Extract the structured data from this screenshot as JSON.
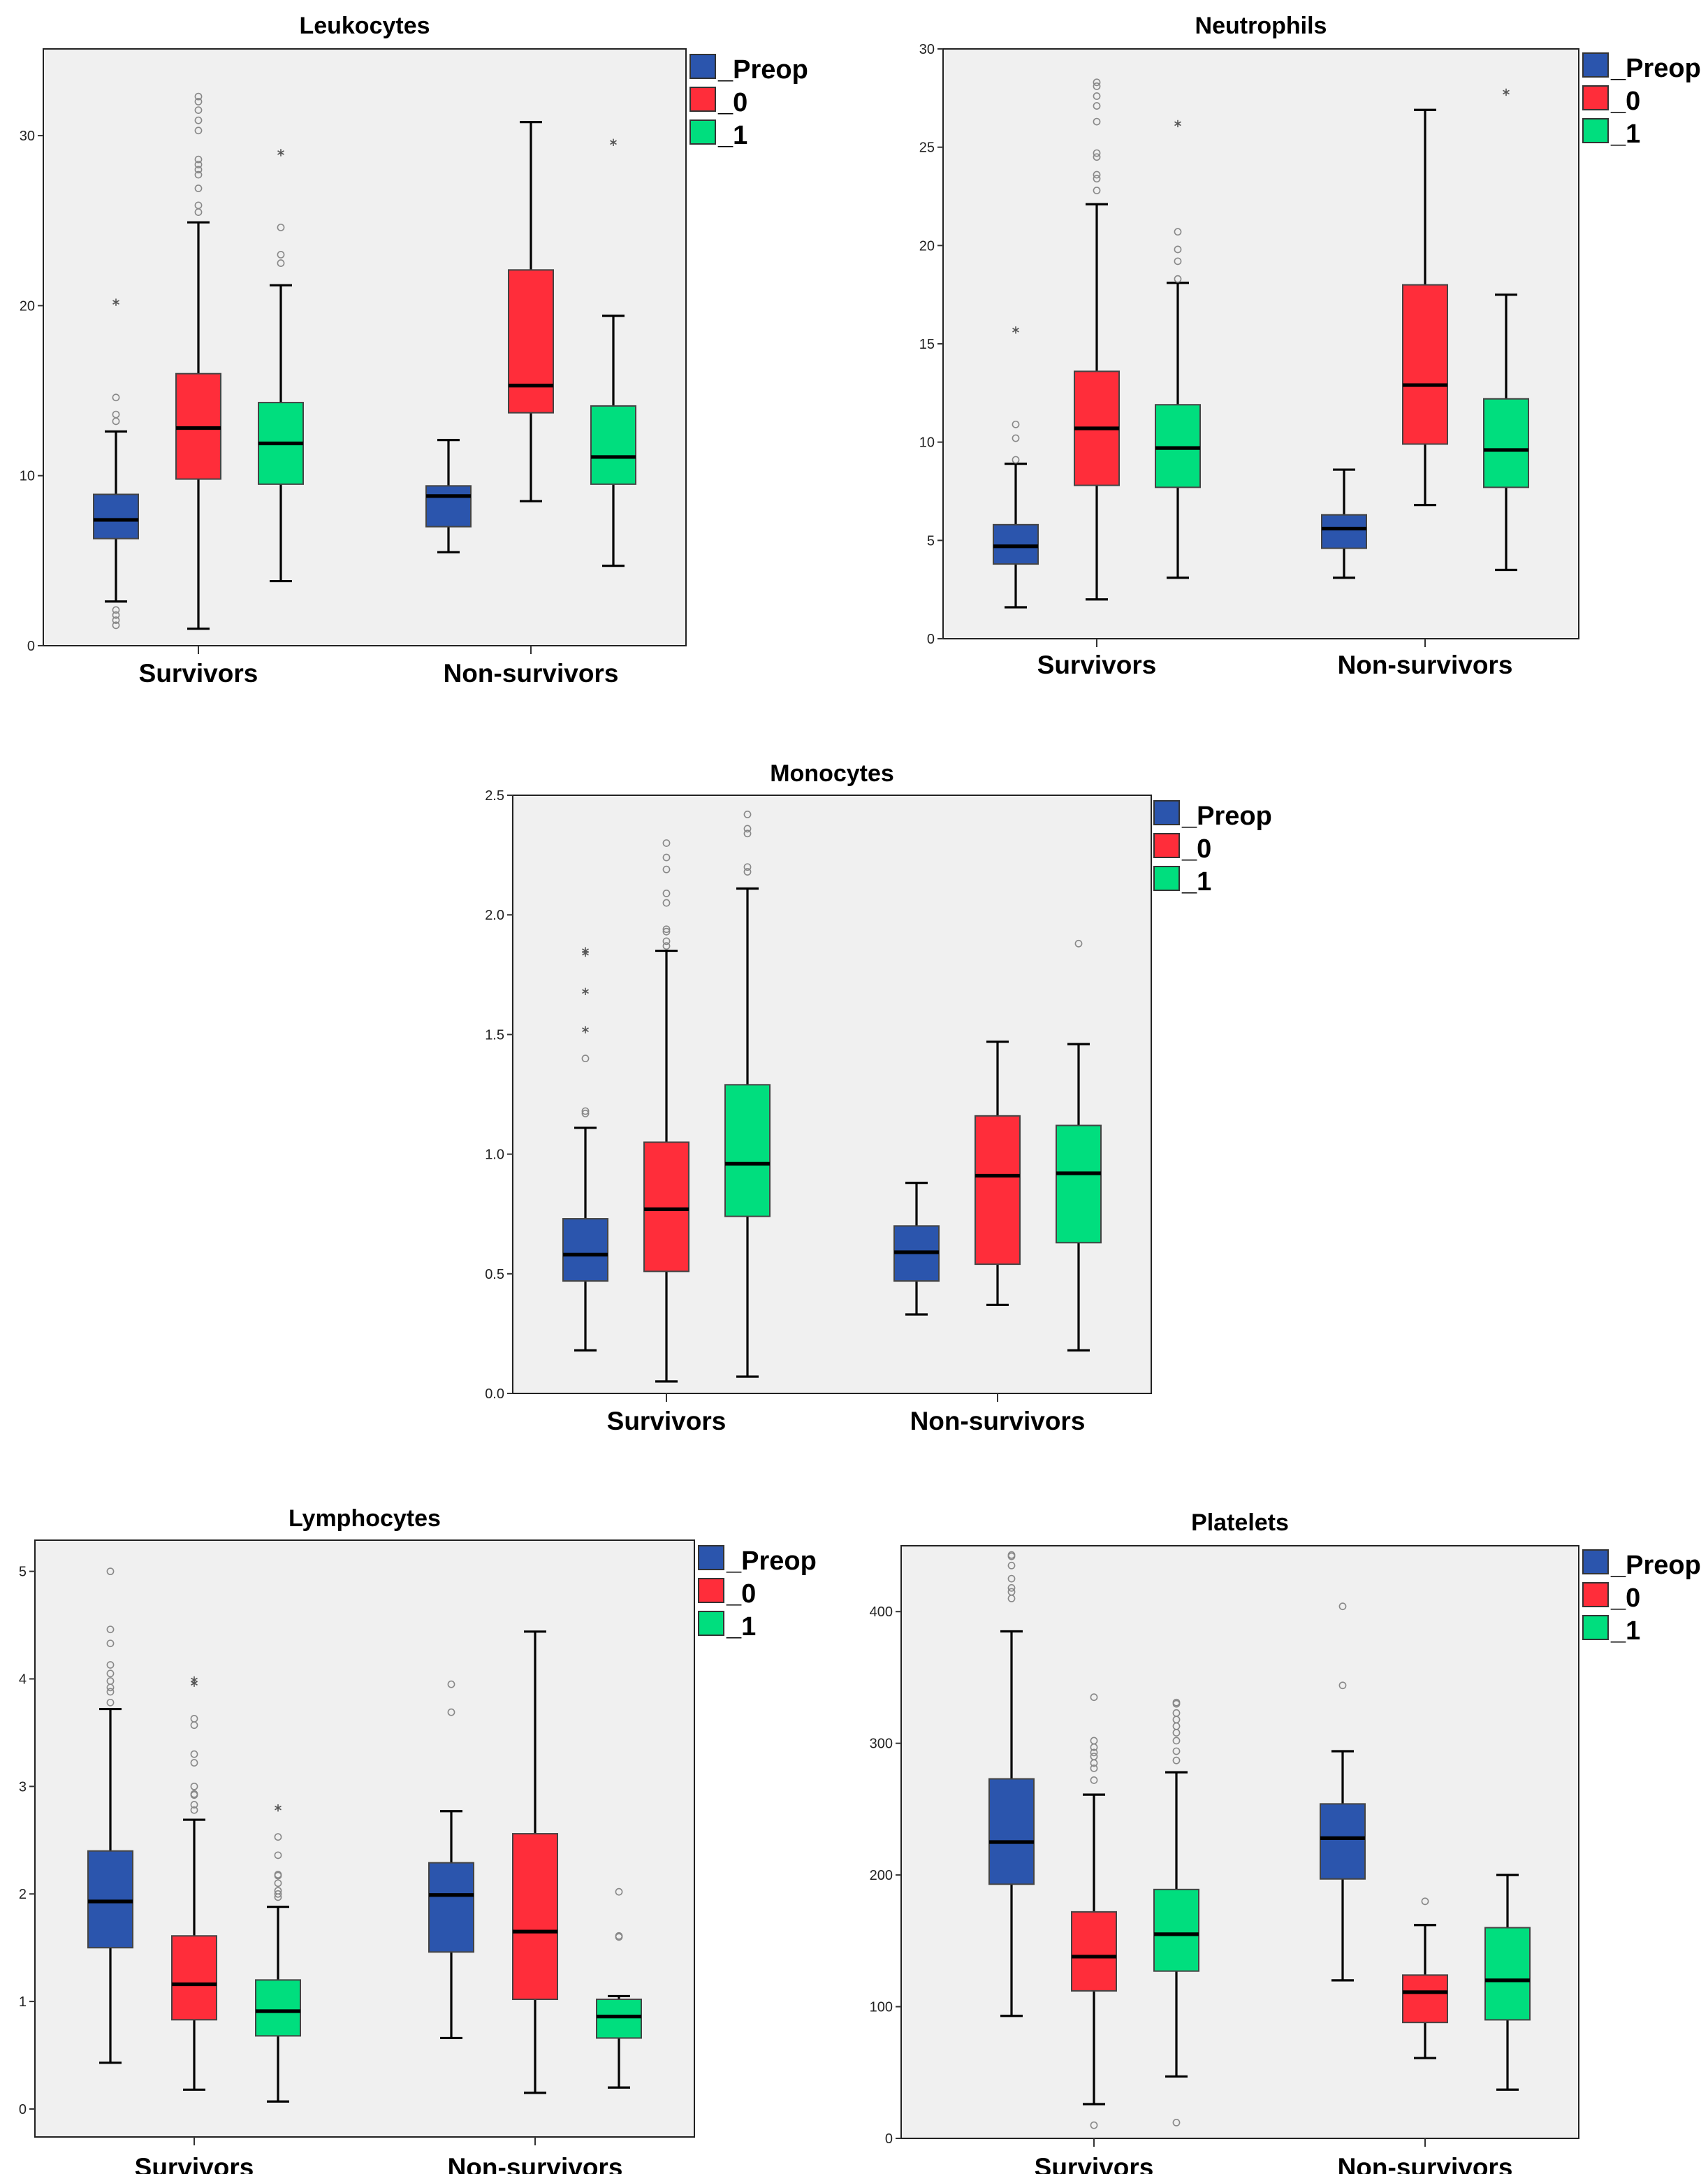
{
  "colors": {
    "_Preop": "#2b55ad",
    "_0": "#ff2d3a",
    "_1": "#00de7e",
    "plot_bg": "#f0f0f0"
  },
  "chart_data": [
    {
      "type": "box",
      "title": "Leukocytes",
      "categories": [
        "Survivors",
        "Non-survivors"
      ],
      "legend": [
        "_Preop",
        "_0",
        "_1"
      ],
      "legend_position": "top-right-outside",
      "yticks": [
        0,
        10,
        20,
        30
      ],
      "ylim": [
        0,
        35.1
      ],
      "series": [
        {
          "name": "_Preop",
          "boxes": [
            {
              "low": 2.6,
              "q1": 6.3,
              "median": 7.4,
              "q3": 8.9,
              "high": 12.6,
              "outliers": [
                1.2,
                1.5,
                1.8,
                2.1,
                13.2,
                13.6,
                14.6
              ],
              "extremes": [
                20.2
              ]
            },
            {
              "low": 5.5,
              "q1": 7.0,
              "median": 8.8,
              "q3": 9.4,
              "high": 12.1,
              "outliers": [],
              "extremes": []
            }
          ]
        },
        {
          "name": "_0",
          "boxes": [
            {
              "low": 1.0,
              "q1": 9.8,
              "median": 12.8,
              "q3": 16.0,
              "high": 24.9,
              "outliers": [
                25.5,
                25.9,
                26.9,
                27.7,
                28.0,
                28.3,
                28.6,
                30.3,
                30.9,
                31.5,
                32.0,
                32.3
              ],
              "extremes": []
            },
            {
              "low": 8.5,
              "q1": 13.7,
              "median": 15.3,
              "q3": 22.1,
              "high": 30.8,
              "outliers": [],
              "extremes": []
            }
          ]
        },
        {
          "name": "_1",
          "boxes": [
            {
              "low": 3.8,
              "q1": 9.5,
              "median": 11.9,
              "q3": 14.3,
              "high": 21.2,
              "outliers": [
                22.5,
                23.0,
                24.6
              ],
              "extremes": [
                29.0
              ]
            },
            {
              "low": 4.7,
              "q1": 9.5,
              "median": 11.1,
              "q3": 14.1,
              "high": 19.4,
              "outliers": [],
              "extremes": [
                29.6
              ]
            }
          ]
        }
      ]
    },
    {
      "type": "box",
      "title": "Neutrophils",
      "categories": [
        "Survivors",
        "Non-survivors"
      ],
      "legend": [
        "_Preop",
        "_0",
        "_1"
      ],
      "legend_position": "top-right-outside",
      "yticks": [
        0,
        5,
        10,
        15,
        20,
        25,
        30
      ],
      "ylim": [
        0,
        30
      ],
      "series": [
        {
          "name": "_Preop",
          "boxes": [
            {
              "low": 1.6,
              "q1": 3.8,
              "median": 4.7,
              "q3": 5.8,
              "high": 8.9,
              "outliers": [
                9.1,
                10.2,
                10.9
              ],
              "extremes": [
                15.7
              ]
            },
            {
              "low": 3.1,
              "q1": 4.6,
              "median": 5.6,
              "q3": 6.3,
              "high": 8.6,
              "outliers": [],
              "extremes": []
            }
          ]
        },
        {
          "name": "_0",
          "boxes": [
            {
              "low": 2.0,
              "q1": 7.8,
              "median": 10.7,
              "q3": 13.6,
              "high": 22.1,
              "outliers": [
                22.8,
                23.4,
                23.6,
                24.5,
                24.7,
                26.3,
                27.1,
                27.6,
                28.1,
                28.3
              ],
              "extremes": []
            },
            {
              "low": 6.8,
              "q1": 9.9,
              "median": 12.9,
              "q3": 18.0,
              "high": 26.9,
              "outliers": [],
              "extremes": []
            }
          ]
        },
        {
          "name": "_1",
          "boxes": [
            {
              "low": 3.1,
              "q1": 7.7,
              "median": 9.7,
              "q3": 11.9,
              "high": 18.1,
              "outliers": [
                18.3,
                19.2,
                19.8,
                20.7
              ],
              "extremes": [
                26.2
              ]
            },
            {
              "low": 3.5,
              "q1": 7.7,
              "median": 9.6,
              "q3": 12.2,
              "high": 17.5,
              "outliers": [],
              "extremes": [
                27.8
              ]
            }
          ]
        }
      ]
    },
    {
      "type": "box",
      "title": "Monocytes",
      "categories": [
        "Survivors",
        "Non-survivors"
      ],
      "legend": [
        "_Preop",
        "_0",
        "_1"
      ],
      "legend_position": "top-right-outside",
      "yticks": [
        "0.0",
        "0.5",
        "1.0",
        "1.5",
        "2.0",
        "2.5"
      ],
      "ylim": [
        0,
        2.5
      ],
      "series": [
        {
          "name": "_Preop",
          "boxes": [
            {
              "low": 0.18,
              "q1": 0.47,
              "median": 0.58,
              "q3": 0.73,
              "high": 1.11,
              "outliers": [
                1.17,
                1.18,
                1.4
              ],
              "extremes": [
                1.52,
                1.68,
                1.84,
                1.85
              ]
            },
            {
              "low": 0.33,
              "q1": 0.47,
              "median": 0.59,
              "q3": 0.7,
              "high": 0.88,
              "outliers": [],
              "extremes": []
            }
          ]
        },
        {
          "name": "_0",
          "boxes": [
            {
              "low": 0.05,
              "q1": 0.51,
              "median": 0.77,
              "q3": 1.05,
              "high": 1.85,
              "outliers": [
                1.87,
                1.89,
                1.93,
                1.94,
                2.05,
                2.09,
                2.19,
                2.24,
                2.3
              ],
              "extremes": []
            },
            {
              "low": 0.37,
              "q1": 0.54,
              "median": 0.91,
              "q3": 1.16,
              "high": 1.47,
              "outliers": [],
              "extremes": []
            }
          ]
        },
        {
          "name": "_1",
          "boxes": [
            {
              "low": 0.07,
              "q1": 0.74,
              "median": 0.96,
              "q3": 1.29,
              "high": 2.11,
              "outliers": [
                2.18,
                2.2,
                2.34,
                2.36,
                2.42
              ],
              "extremes": []
            },
            {
              "low": 0.18,
              "q1": 0.63,
              "median": 0.92,
              "q3": 1.12,
              "high": 1.46,
              "outliers": [
                1.88
              ],
              "extremes": []
            }
          ]
        }
      ]
    },
    {
      "type": "box",
      "title": "Lymphocytes",
      "categories": [
        "Survivors",
        "Non-survivors"
      ],
      "legend": [
        "_Preop",
        "_0",
        "_1"
      ],
      "legend_position": "top-right-outside",
      "yticks": [
        0,
        1,
        2,
        3,
        4,
        5
      ],
      "ylim": [
        -0.26,
        5.29
      ],
      "series": [
        {
          "name": "_Preop",
          "boxes": [
            {
              "low": 0.43,
              "q1": 1.5,
              "median": 1.93,
              "q3": 2.4,
              "high": 3.72,
              "outliers": [
                3.78,
                3.88,
                3.92,
                3.98,
                4.05,
                4.13,
                4.33,
                4.46,
                5.0
              ],
              "extremes": []
            },
            {
              "low": 0.66,
              "q1": 1.46,
              "median": 1.99,
              "q3": 2.29,
              "high": 2.77,
              "outliers": [
                3.69,
                3.95
              ],
              "extremes": []
            }
          ]
        },
        {
          "name": "_0",
          "boxes": [
            {
              "low": 0.18,
              "q1": 0.83,
              "median": 1.16,
              "q3": 1.61,
              "high": 2.69,
              "outliers": [
                2.78,
                2.83,
                2.92,
                2.93,
                3.0,
                3.22,
                3.3,
                3.57,
                3.63
              ],
              "extremes": [
                3.96,
                3.99
              ]
            },
            {
              "low": 0.15,
              "q1": 1.02,
              "median": 1.65,
              "q3": 2.56,
              "high": 4.44,
              "outliers": [],
              "extremes": []
            }
          ]
        },
        {
          "name": "_1",
          "boxes": [
            {
              "low": 0.07,
              "q1": 0.68,
              "median": 0.91,
              "q3": 1.2,
              "high": 1.88,
              "outliers": [
                1.97,
                2.0,
                2.03,
                2.1,
                2.17,
                2.18,
                2.36,
                2.53
              ],
              "extremes": [
                2.8
              ]
            },
            {
              "low": 0.2,
              "q1": 0.66,
              "median": 0.86,
              "q3": 1.02,
              "high": 1.05,
              "outliers": [
                1.6,
                1.61,
                2.02
              ],
              "extremes": []
            }
          ]
        }
      ]
    },
    {
      "type": "box",
      "title": "Platelets",
      "categories": [
        "Survivors",
        "Non-survivors"
      ],
      "legend": [
        "_Preop",
        "_0",
        "_1"
      ],
      "legend_position": "top-right-outside",
      "yticks": [
        0,
        100,
        200,
        300,
        400
      ],
      "ylim": [
        0,
        450
      ],
      "series": [
        {
          "name": "_Preop",
          "boxes": [
            {
              "low": 93,
              "q1": 193,
              "median": 225,
              "q3": 273,
              "high": 385,
              "outliers": [
                410,
                415,
                418,
                425,
                435,
                442,
                443
              ],
              "extremes": []
            },
            {
              "low": 120,
              "q1": 197,
              "median": 228,
              "q3": 254,
              "high": 294,
              "outliers": [
                344,
                404
              ],
              "extremes": []
            }
          ]
        },
        {
          "name": "_0",
          "boxes": [
            {
              "low": 26,
              "q1": 112,
              "median": 138,
              "q3": 172,
              "high": 261,
              "outliers": [
                10,
                272,
                281,
                285,
                290,
                293,
                297,
                302,
                335
              ],
              "extremes": []
            },
            {
              "low": 61,
              "q1": 88,
              "median": 111,
              "q3": 124,
              "high": 162,
              "outliers": [
                180
              ],
              "extremes": []
            }
          ]
        },
        {
          "name": "_1",
          "boxes": [
            {
              "low": 47,
              "q1": 127,
              "median": 155,
              "q3": 189,
              "high": 278,
              "outliers": [
                12,
                287,
                294,
                302,
                308,
                313,
                318,
                323,
                330,
                331
              ],
              "extremes": []
            },
            {
              "low": 37,
              "q1": 90,
              "median": 120,
              "q3": 160,
              "high": 200,
              "outliers": [],
              "extremes": []
            }
          ]
        }
      ]
    }
  ]
}
